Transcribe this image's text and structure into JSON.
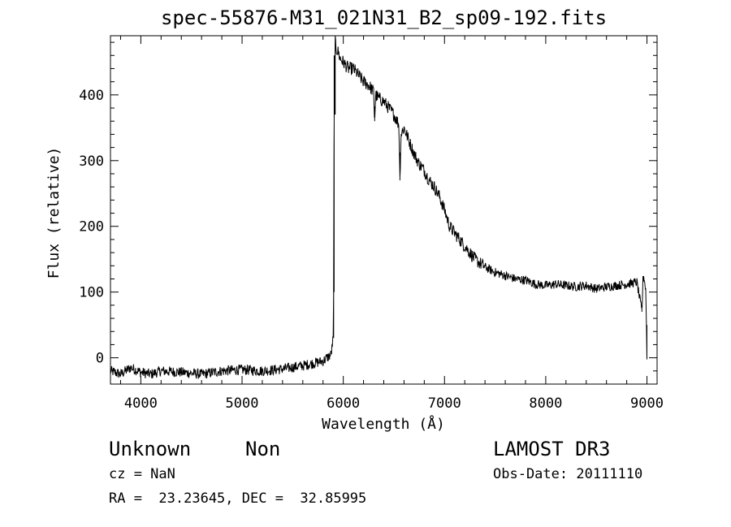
{
  "chart_data": {
    "type": "line",
    "title": "spec-55876-M31_021N31_B2_sp09-192.fits",
    "xlabel": "Wavelength (Å)",
    "ylabel": "Flux (relative)",
    "xlim": [
      3700,
      9100
    ],
    "ylim": [
      -40,
      490
    ],
    "x_ticks": [
      4000,
      5000,
      6000,
      7000,
      8000,
      9000
    ],
    "y_ticks": [
      0,
      100,
      200,
      300,
      400
    ],
    "grid": false,
    "series": [
      {
        "x": [
          3700,
          3800,
          3900,
          4000,
          4100,
          4200,
          4400,
          4600,
          4800,
          5000,
          5200,
          5400,
          5600,
          5800,
          5880,
          5900,
          5905,
          5910,
          5915,
          5920,
          5930,
          5950,
          5970,
          6000,
          6050,
          6100,
          6150,
          6200,
          6250,
          6300,
          6310,
          6320,
          6350,
          6400,
          6450,
          6500,
          6550,
          6560,
          6570,
          6600,
          6650,
          6700,
          6750,
          6800,
          6850,
          6900,
          6950,
          7000,
          7050,
          7100,
          7150,
          7200,
          7300,
          7400,
          7500,
          7600,
          7700,
          7800,
          7900,
          8000,
          8100,
          8200,
          8300,
          8400,
          8500,
          8600,
          8700,
          8800,
          8900,
          8950,
          8960,
          8970,
          8990,
          9000
        ],
        "y": [
          -20,
          -25,
          -15,
          -22,
          -25,
          -20,
          -22,
          -25,
          -20,
          -18,
          -20,
          -17,
          -12,
          -5,
          5,
          30,
          100,
          460,
          370,
          485,
          470,
          465,
          455,
          450,
          440,
          440,
          430,
          420,
          415,
          405,
          360,
          400,
          395,
          390,
          380,
          370,
          355,
          270,
          340,
          350,
          330,
          310,
          295,
          285,
          270,
          260,
          245,
          225,
          200,
          190,
          180,
          170,
          150,
          138,
          130,
          125,
          120,
          118,
          112,
          110,
          112,
          110,
          108,
          110,
          105,
          108,
          110,
          112,
          115,
          70,
          118,
          125,
          100,
          0
        ]
      }
    ]
  },
  "footer": {
    "object_class": "Unknown",
    "subclass": "Non",
    "survey": "LAMOST DR3",
    "cz": "cz = NaN",
    "obs_date": "Obs-Date: 20111110",
    "coords": "RA =  23.23645, DEC =  32.85995"
  }
}
